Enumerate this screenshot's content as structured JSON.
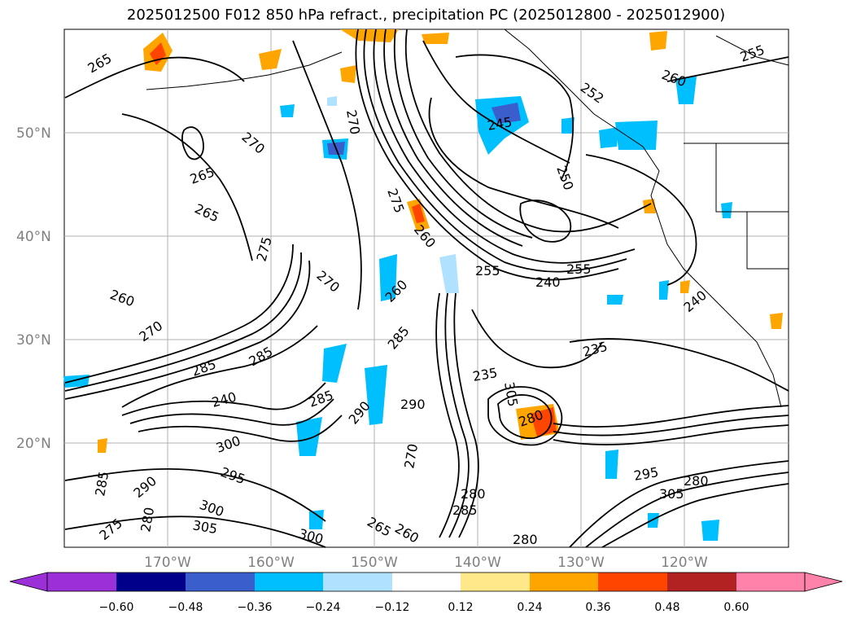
{
  "title": "2025012500 F012 850 hPa refract., precipitation PC (2025012800 - 2025012900)",
  "lat_ticks": [
    "50°N",
    "40°N",
    "30°N",
    "20°N"
  ],
  "lon_ticks": [
    "170°W",
    "160°W",
    "150°W",
    "140°W",
    "130°W",
    "120°W"
  ],
  "colorbar": {
    "colors": [
      "#9b30d9",
      "#00008b",
      "#3a5fcd",
      "#00bfff",
      "#b0e2ff",
      "#ffffff",
      "#ffe88a",
      "#ffa500",
      "#ff4500",
      "#b22222",
      "#ff82ab"
    ],
    "labels": [
      "−0.60",
      "−0.48",
      "−0.36",
      "−0.24",
      "−0.12",
      "0.12",
      "0.24",
      "0.36",
      "0.48",
      "0.60"
    ]
  },
  "contour_labels": [
    "265",
    "270",
    "265",
    "265",
    "260",
    "270",
    "285",
    "240",
    "285",
    "290",
    "295",
    "285",
    "300",
    "305",
    "280",
    "275",
    "290",
    "275",
    "270",
    "280",
    "285",
    "285",
    "290",
    "270",
    "265",
    "260",
    "300",
    "280",
    "285",
    "270",
    "275",
    "260",
    "255",
    "255",
    "240",
    "235",
    "235",
    "245",
    "250",
    "252",
    "260",
    "255",
    "260",
    "240",
    "305",
    "295",
    "280",
    "305",
    "280",
    "300"
  ]
}
